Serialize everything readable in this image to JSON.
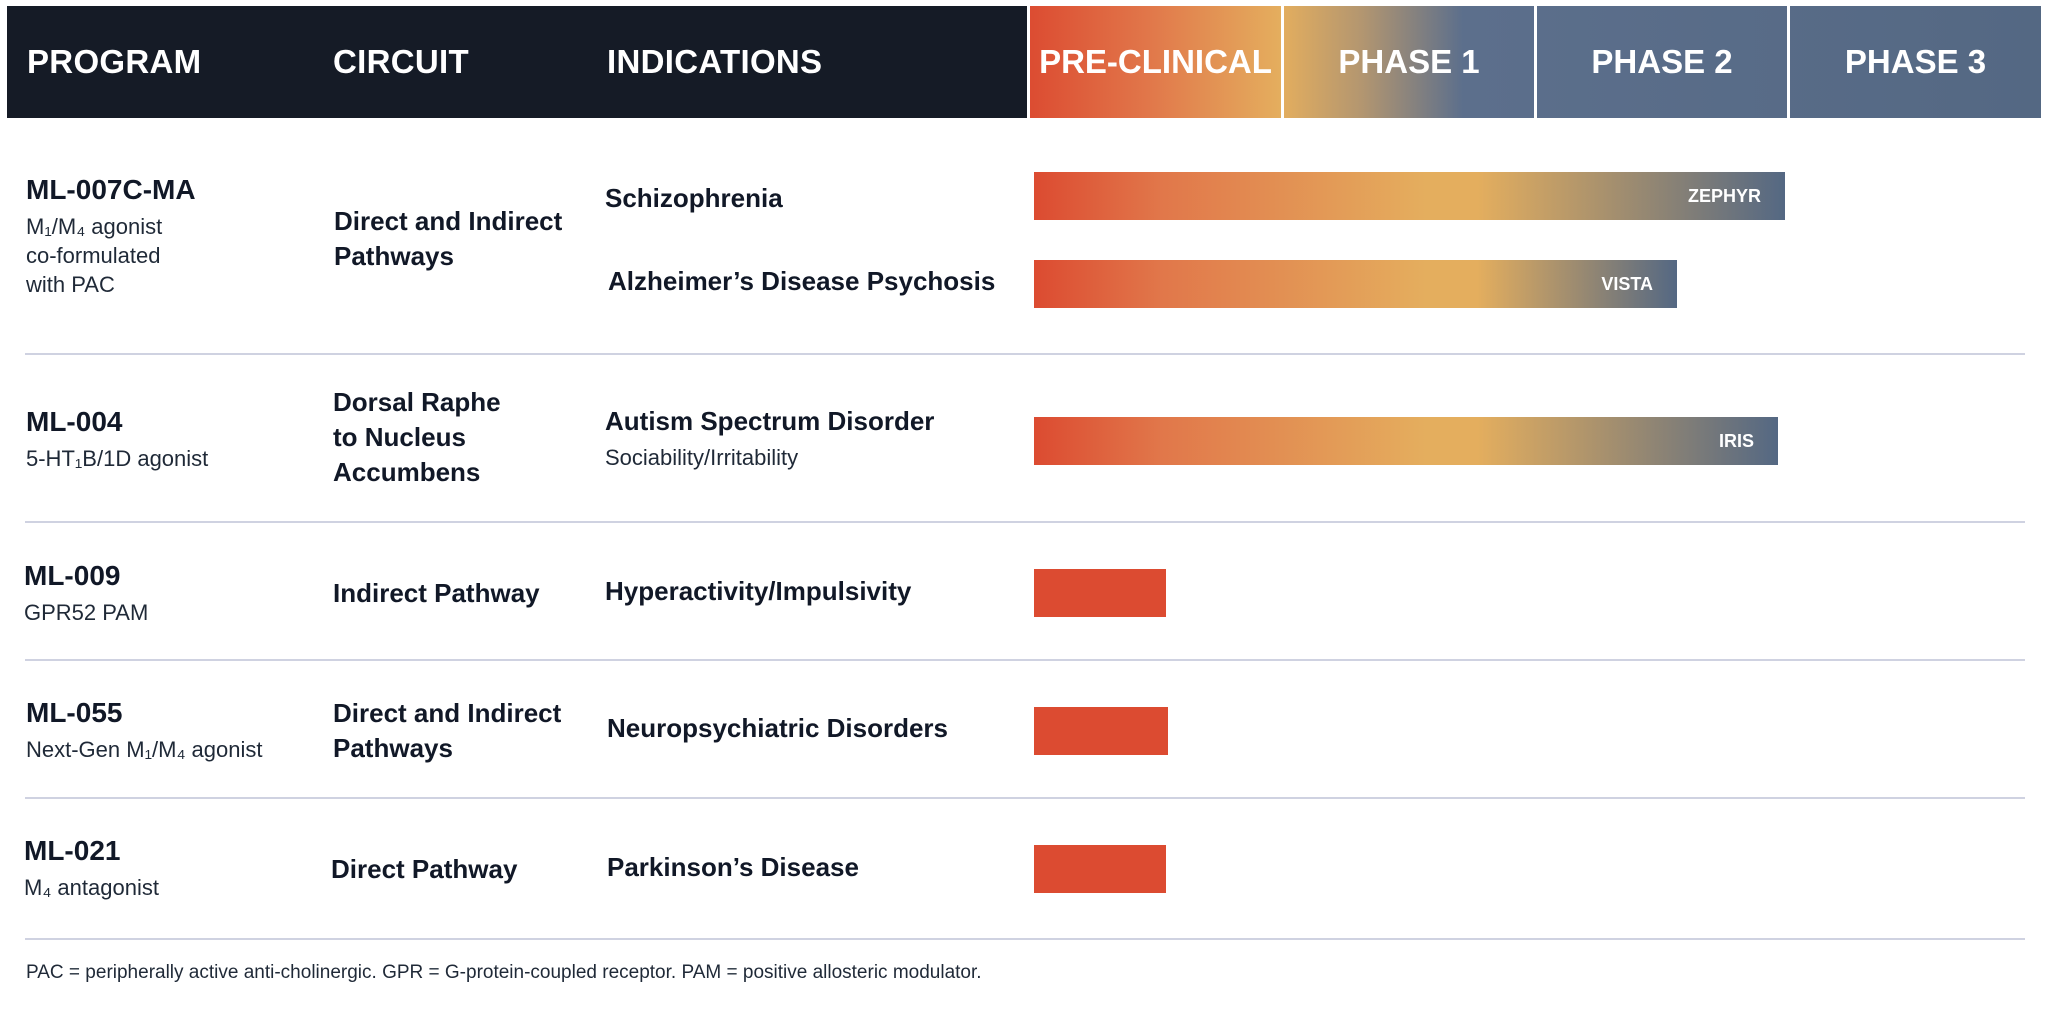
{
  "header": {
    "program": "PROGRAM",
    "circuit": "CIRCUIT",
    "indications": "INDICATIONS",
    "phases": [
      "PRE-CLINICAL",
      "PHASE 1",
      "PHASE 2",
      "PHASE 3"
    ]
  },
  "colors": {
    "header_bg": "#151b26",
    "preclinical": "#dc4b31",
    "phase1": "#e4ae5e",
    "phase2": "#546883",
    "divider": "#cfd2e1"
  },
  "programs": [
    {
      "code": "ML-007C-MA",
      "desc_lines": [
        "M₁/M₄ agonist",
        "co-formulated",
        "with PAC"
      ],
      "circuit_lines": [
        "Direct and Indirect",
        "Pathways"
      ]
    },
    {
      "code": "ML-004",
      "desc_lines": [
        "5-HT₁B/1D agonist"
      ],
      "circuit_lines": [
        "Dorsal Raphe",
        "to Nucleus",
        "Accumbens"
      ]
    },
    {
      "code": "ML-009",
      "desc_lines": [
        "GPR52 PAM"
      ],
      "circuit_lines": [
        "Indirect Pathway"
      ]
    },
    {
      "code": "ML-055",
      "desc_lines": [
        "Next-Gen M₁/M₄ agonist"
      ],
      "circuit_lines": [
        "Direct and Indirect",
        "Pathways"
      ]
    },
    {
      "code": "ML-021",
      "desc_lines": [
        "M₄ antagonist"
      ],
      "circuit_lines": [
        "Direct Pathway"
      ]
    }
  ],
  "chart_data": {
    "type": "bar",
    "phases": [
      "PRE-CLINICAL",
      "PHASE 1",
      "PHASE 2",
      "PHASE 3"
    ],
    "x_scale_note": "progress measured in phases completed (0 = start of pre-clinical, 4 = end of phase 3)",
    "bars": [
      {
        "program": "ML-007C-MA",
        "indication": "Schizophrenia",
        "sub": "",
        "progress": 2.97,
        "trial": "ZEPHYR"
      },
      {
        "program": "ML-007C-MA",
        "indication": "Alzheimer’s Disease Psychosis",
        "sub": "",
        "progress": 2.54,
        "trial": "VISTA"
      },
      {
        "program": "ML-004",
        "indication": "Autism Spectrum Disorder",
        "sub": "Sociability/Irritability",
        "progress": 2.94,
        "trial": "IRIS"
      },
      {
        "program": "ML-009",
        "indication": "Hyperactivity/Impulsivity",
        "sub": "",
        "progress": 0.52,
        "trial": ""
      },
      {
        "program": "ML-055",
        "indication": "Neuropsychiatric Disorders",
        "sub": "",
        "progress": 0.53,
        "trial": ""
      },
      {
        "program": "ML-021",
        "indication": "Parkinson’s Disease",
        "sub": "",
        "progress": 0.52,
        "trial": ""
      }
    ]
  },
  "footnote": "PAC = peripherally active anti-cholinergic. GPR = G-protein-coupled receptor. PAM = positive allosteric modulator."
}
